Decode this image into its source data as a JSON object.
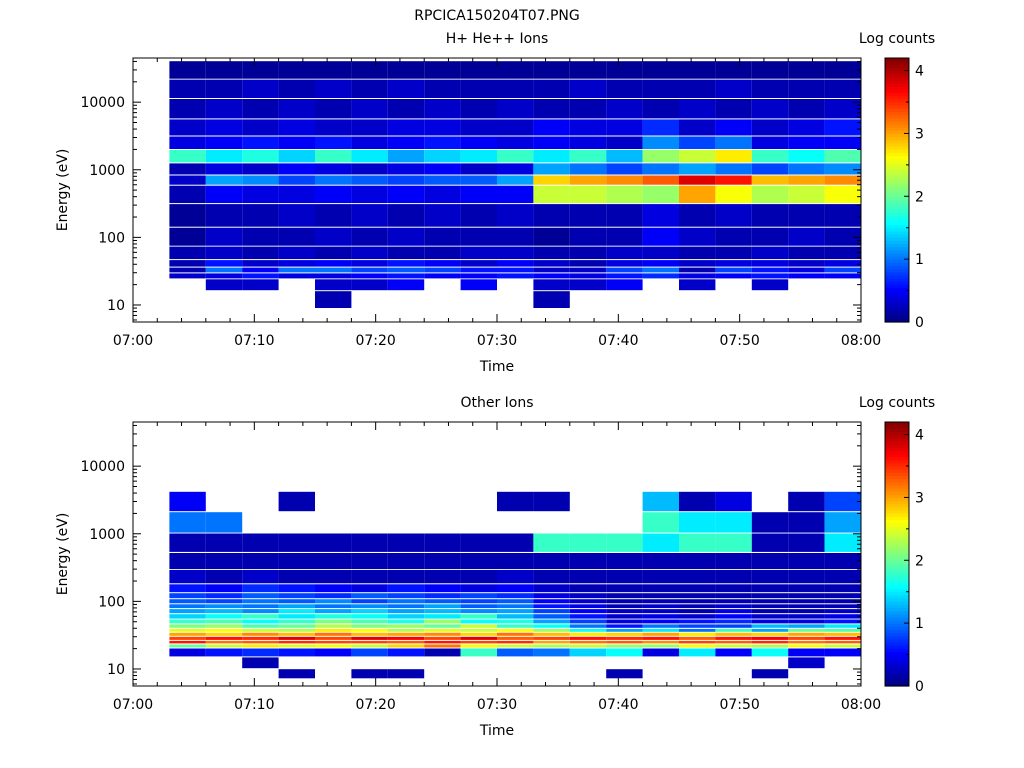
{
  "figure_title": "RPCICA150204T07.PNG",
  "colors": {
    "colormap": [
      "#00007f",
      "#0000ff",
      "#007fff",
      "#00ffff",
      "#7fff7f",
      "#ffff00",
      "#ff7f00",
      "#ff0000",
      "#7f0000"
    ],
    "axis": "#000000",
    "background": "#ffffff"
  },
  "chart_data": [
    {
      "type": "heatmap",
      "title": "H+ He++ Ions",
      "xlabel": "Time",
      "ylabel": "Energy (eV)",
      "colorbar_label": "Log counts",
      "y_scale": "log",
      "ylim": [
        5.6,
        45000
      ],
      "x_ticks": [
        "07:00",
        "07:10",
        "07:20",
        "07:30",
        "07:40",
        "07:50",
        "08:00"
      ],
      "y_ticks": [
        "10",
        "100",
        "1000",
        "10000"
      ],
      "colorbar_ticks": [
        "0",
        "1",
        "2",
        "3",
        "4"
      ],
      "clim": [
        0,
        4.2
      ],
      "time_columns_minutes": [
        3,
        6,
        9,
        12,
        15,
        18,
        21,
        24,
        27,
        30,
        33,
        36,
        39,
        42,
        45,
        48,
        51,
        54,
        57
      ],
      "energy_bins_eV": [
        12,
        22,
        27,
        33,
        40,
        55,
        100,
        200,
        500,
        700,
        1000,
        1600,
        2500,
        4000,
        8000,
        16000,
        30000
      ],
      "values": [
        [
          0,
          0,
          0,
          0,
          0.2,
          0,
          0,
          0,
          0,
          0,
          0.2,
          0,
          0,
          0,
          0,
          0,
          0,
          0,
          0
        ],
        [
          0,
          0.3,
          0.3,
          0,
          0.3,
          0.3,
          0.5,
          0,
          0.5,
          0,
          0.3,
          0.3,
          0.5,
          0,
          0.3,
          0,
          0.3,
          0,
          0
        ],
        [
          0.3,
          0.4,
          0.6,
          0.4,
          0.4,
          0.5,
          0.6,
          0.5,
          0.5,
          0.6,
          0.5,
          0.4,
          0.6,
          0.7,
          0.4,
          0.5,
          0.6,
          0.5,
          0.5
        ],
        [
          0.2,
          1.0,
          0.5,
          1.0,
          1.0,
          0.8,
          0.9,
          0.8,
          0.6,
          0.6,
          0.3,
          0.3,
          0.8,
          1.0,
          0.2,
          0.8,
          0.6,
          0.4,
          0.8
        ],
        [
          0.2,
          0.6,
          0.3,
          0.4,
          0.5,
          0.4,
          0.6,
          0.5,
          0.3,
          0.5,
          0.3,
          0.2,
          0.4,
          0.5,
          0.3,
          0.4,
          0.4,
          0.3,
          0.4
        ],
        [
          0.2,
          0.3,
          0.2,
          0.3,
          0.2,
          0.3,
          0.2,
          0.2,
          0.3,
          0.3,
          0.2,
          0.2,
          0.3,
          0.3,
          0.2,
          0.2,
          0.3,
          0.2,
          0.2
        ],
        [
          0.1,
          0.3,
          0.2,
          0.2,
          0.3,
          0.2,
          0.3,
          0.2,
          0.2,
          0.2,
          0.1,
          0.2,
          0.2,
          0.5,
          0.3,
          0.2,
          0.2,
          0.3,
          0.2
        ],
        [
          0.1,
          0.2,
          0.2,
          0.3,
          0.2,
          0.3,
          0.2,
          0.3,
          0.2,
          0.3,
          0.2,
          0.2,
          0.2,
          0.4,
          0.2,
          0.3,
          0.2,
          0.2,
          0.2
        ],
        [
          0.2,
          0.5,
          0.4,
          0.4,
          0.5,
          0.4,
          0.5,
          0.4,
          0.5,
          0.5,
          2.4,
          2.4,
          2.3,
          2.2,
          3.0,
          2.6,
          2.3,
          2.4,
          2.6
        ],
        [
          0.3,
          1.2,
          1.1,
          0.8,
          1.0,
          0.9,
          0.8,
          0.9,
          0.9,
          1.2,
          2.8,
          3.0,
          3.1,
          3.3,
          3.8,
          3.6,
          2.9,
          3.0,
          3.1
        ],
        [
          0.2,
          0.4,
          0.3,
          0.5,
          0.4,
          0.3,
          0.4,
          0.5,
          0.3,
          0.4,
          1.2,
          1.0,
          0.8,
          1.0,
          1.2,
          1.0,
          0.8,
          1.0,
          1.1
        ],
        [
          1.8,
          1.5,
          1.7,
          1.4,
          1.8,
          1.5,
          1.2,
          1.4,
          1.5,
          1.8,
          1.5,
          1.8,
          1.3,
          2.2,
          2.4,
          2.7,
          1.8,
          1.6,
          1.9
        ],
        [
          0.4,
          0.5,
          0.6,
          0.5,
          0.6,
          0.4,
          0.5,
          0.6,
          0.5,
          0.4,
          0.5,
          0.4,
          0.3,
          1.1,
          0.8,
          1.0,
          0.4,
          0.5,
          0.5
        ],
        [
          0.3,
          0.4,
          0.3,
          0.4,
          0.3,
          0.3,
          0.4,
          0.4,
          0.3,
          0.3,
          0.5,
          0.4,
          0.4,
          0.7,
          0.3,
          0.5,
          0.3,
          0.4,
          0.6
        ],
        [
          0.2,
          0.3,
          0.2,
          0.3,
          0.2,
          0.3,
          0.2,
          0.3,
          0.2,
          0.3,
          0.2,
          0.2,
          0.3,
          0.2,
          0.3,
          0.2,
          0.3,
          0.2,
          0.3
        ],
        [
          0.2,
          0.2,
          0.3,
          0.2,
          0.3,
          0.2,
          0.3,
          0.2,
          0.2,
          0.2,
          0.2,
          0.3,
          0.2,
          0.2,
          0.2,
          0.3,
          0.2,
          0.2,
          0.2
        ],
        [
          0.1,
          0.1,
          0.1,
          0.1,
          0.1,
          0.1,
          0.1,
          0.1,
          0.1,
          0.1,
          0.1,
          0.1,
          0.1,
          0.1,
          0.1,
          0.1,
          0.1,
          0.1,
          0.1
        ]
      ]
    },
    {
      "type": "heatmap",
      "title": "Other Ions",
      "xlabel": "Time",
      "ylabel": "Energy (eV)",
      "colorbar_label": "Log counts",
      "y_scale": "log",
      "ylim": [
        5.6,
        45000
      ],
      "x_ticks": [
        "07:00",
        "07:10",
        "07:20",
        "07:30",
        "07:40",
        "07:50",
        "08:00"
      ],
      "y_ticks": [
        "10",
        "100",
        "1000",
        "10000"
      ],
      "colorbar_ticks": [
        "0",
        "1",
        "2",
        "3",
        "4"
      ],
      "clim": [
        0,
        4.2
      ],
      "time_columns_minutes": [
        3,
        6,
        9,
        12,
        15,
        18,
        21,
        24,
        27,
        30,
        33,
        36,
        39,
        42,
        45,
        48,
        51,
        54,
        57
      ],
      "energy_bins_eV": [
        8.5,
        12,
        19,
        22,
        25,
        28,
        33,
        37,
        43,
        50,
        60,
        72,
        85,
        100,
        120,
        150,
        220,
        400,
        700,
        1500,
        3000
      ],
      "values": [
        [
          0,
          0,
          0,
          0.2,
          0,
          0.2,
          0.2,
          0,
          0,
          0,
          0,
          0,
          0.2,
          0,
          0,
          0,
          0.2,
          0,
          0
        ],
        [
          0,
          0,
          0.2,
          0,
          0,
          0,
          0,
          0,
          0,
          0,
          0,
          0,
          0,
          0,
          0,
          0,
          0,
          0.3,
          0
        ],
        [
          0.4,
          0.6,
          0.7,
          0.6,
          0.5,
          0.8,
          0.6,
          0.2,
          1.8,
          0.9,
          1.0,
          1.4,
          1.6,
          0.4,
          1.5,
          0.5,
          1.6,
          0.5,
          0.5
        ],
        [
          2.0,
          2.4,
          2.7,
          2.5,
          2.6,
          2.4,
          2.8,
          3.2,
          2.6,
          2.4,
          2.3,
          2.4,
          2.2,
          2.2,
          2.6,
          2.4,
          2.3,
          2.6,
          2.4
        ],
        [
          3.6,
          3.2,
          3.3,
          3.5,
          3.4,
          3.4,
          3.3,
          3.6,
          3.4,
          3.5,
          3.0,
          3.2,
          3.3,
          3.1,
          3.4,
          3.3,
          3.5,
          3.2,
          3.3
        ],
        [
          3.4,
          3.6,
          3.5,
          3.8,
          3.4,
          3.8,
          3.7,
          3.4,
          3.8,
          3.3,
          3.4,
          3.6,
          3.5,
          3.6,
          3.3,
          3.6,
          3.7,
          3.4,
          3.6
        ],
        [
          3.0,
          2.8,
          3.1,
          2.9,
          3.2,
          2.9,
          3.0,
          3.1,
          2.8,
          3.2,
          2.9,
          2.7,
          2.8,
          3.0,
          2.7,
          2.9,
          2.8,
          3.0,
          2.9
        ],
        [
          2.5,
          2.6,
          2.4,
          2.3,
          2.7,
          2.6,
          2.3,
          2.5,
          2.4,
          2.6,
          2.2,
          1.6,
          1.2,
          1.5,
          1.0,
          1.8,
          1.2,
          2.0,
          1.9
        ],
        [
          2.1,
          2.2,
          1.9,
          2.0,
          2.3,
          2.1,
          2.2,
          2.0,
          2.4,
          1.8,
          1.6,
          1.0,
          0.6,
          1.0,
          0.8,
          0.8,
          1.3,
          1.2,
          1.5
        ],
        [
          1.8,
          1.9,
          1.6,
          1.8,
          2.1,
          1.9,
          1.7,
          2.2,
          1.6,
          1.7,
          1.2,
          0.8,
          0.4,
          0.5,
          0.6,
          0.7,
          0.4,
          0.4,
          0.6
        ],
        [
          1.4,
          1.6,
          1.8,
          1.5,
          1.7,
          1.6,
          1.4,
          1.5,
          1.8,
          1.3,
          0.9,
          0.6,
          0.3,
          0.4,
          0.3,
          0.5,
          0.3,
          0.3,
          0.4
        ],
        [
          1.2,
          1.3,
          1.1,
          1.5,
          1.2,
          1.4,
          1.2,
          1.3,
          1.1,
          1.2,
          0.8,
          0.5,
          0.3,
          0.3,
          0.2,
          0.4,
          0.2,
          0.2,
          0.3
        ],
        [
          1.0,
          1.1,
          1.0,
          1.2,
          1.0,
          1.1,
          1.0,
          1.2,
          0.9,
          1.0,
          0.6,
          0.4,
          0.2,
          0.3,
          0.2,
          0.3,
          0.2,
          0.2,
          0.2
        ],
        [
          0.9,
          0.8,
          1.0,
          0.9,
          1.1,
          0.8,
          1.0,
          0.9,
          0.8,
          0.9,
          0.5,
          0.3,
          0.2,
          0.2,
          0.2,
          0.2,
          0.2,
          0.2,
          0.2
        ],
        [
          0.8,
          0.7,
          0.9,
          0.8,
          0.7,
          0.9,
          0.8,
          0.7,
          0.8,
          0.7,
          0.4,
          0.3,
          0.2,
          0.2,
          0.2,
          0.2,
          0.2,
          0.2,
          0.2
        ],
        [
          0.6,
          0.5,
          0.7,
          0.6,
          0.5,
          0.4,
          0.6,
          0.5,
          0.4,
          0.5,
          0.3,
          0.2,
          0.2,
          0.2,
          0.2,
          0.2,
          0.2,
          0.2,
          0.2
        ],
        [
          0.3,
          0.2,
          0.3,
          0.2,
          0.2,
          0.2,
          0.2,
          0.2,
          0.2,
          0.3,
          0.2,
          0.2,
          0.2,
          0.2,
          0.2,
          0.2,
          0.2,
          0.2,
          0.2
        ],
        [
          0.2,
          0.2,
          0.2,
          0.2,
          0.2,
          0.2,
          0.2,
          0.2,
          0.2,
          0.2,
          0.2,
          0.2,
          0.2,
          0.2,
          0.2,
          0.2,
          0.2,
          0.2,
          0.2
        ],
        [
          0.2,
          0.2,
          0.2,
          0.2,
          0.2,
          0.2,
          0.2,
          0.2,
          0.2,
          0.2,
          1.8,
          1.8,
          1.8,
          1.5,
          1.8,
          1.8,
          0.2,
          0.2,
          1.5
        ],
        [
          1.0,
          1.0,
          0,
          0,
          0,
          0,
          0,
          0,
          0,
          0,
          0,
          0,
          0,
          1.8,
          1.5,
          1.5,
          0.2,
          0.2,
          1.2
        ],
        [
          0.5,
          0,
          0,
          0.2,
          0,
          0,
          0,
          0,
          0,
          0.2,
          0.2,
          0,
          0,
          1.3,
          0.2,
          0.4,
          0,
          0.2,
          0.8
        ]
      ]
    }
  ]
}
